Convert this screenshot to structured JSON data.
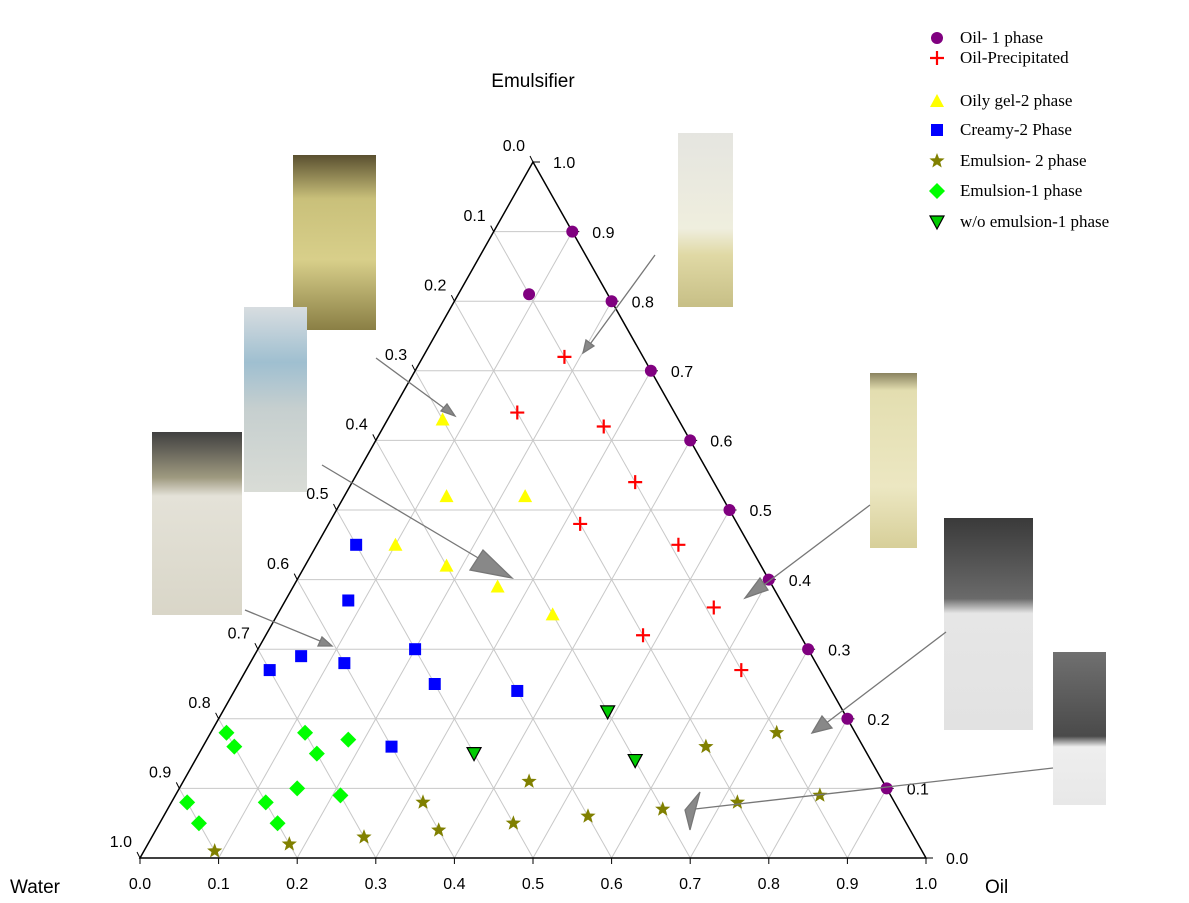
{
  "chart_data": {
    "type": "ternary",
    "axis_labels": {
      "top": "Emulsifier",
      "left": "Water",
      "right": "Oil"
    },
    "oil_ticks": [
      {
        "value": 0,
        "label": "0.0"
      },
      {
        "value": 0.1,
        "label": "0.1"
      },
      {
        "value": 0.2,
        "label": "0.2"
      },
      {
        "value": 0.3,
        "label": "0.3"
      },
      {
        "value": 0.4,
        "label": "0.4"
      },
      {
        "value": 0.5,
        "label": "0.5"
      },
      {
        "value": 0.6,
        "label": "0.6"
      },
      {
        "value": 0.7,
        "label": "0.7"
      },
      {
        "value": 0.8,
        "label": "0.8"
      },
      {
        "value": 0.9,
        "label": "0.9"
      },
      {
        "value": 1,
        "label": "1.0"
      }
    ],
    "water_ticks": [
      {
        "value": 0,
        "label": "0.0"
      },
      {
        "value": 0.1,
        "label": "0.1"
      },
      {
        "value": 0.2,
        "label": "0.2"
      },
      {
        "value": 0.3,
        "label": "0.3"
      },
      {
        "value": 0.4,
        "label": "0.4"
      },
      {
        "value": 0.5,
        "label": "0.5"
      },
      {
        "value": 0.6,
        "label": "0.6"
      },
      {
        "value": 0.7,
        "label": "0.7"
      },
      {
        "value": 0.8,
        "label": "0.8"
      },
      {
        "value": 0.9,
        "label": "0.9"
      },
      {
        "value": 1,
        "label": "1.0"
      }
    ],
    "emulsifier_ticks": [
      {
        "value": 0,
        "label": "0.0"
      },
      {
        "value": 0.1,
        "label": "0.1"
      },
      {
        "value": 0.2,
        "label": "0.2"
      },
      {
        "value": 0.3,
        "label": "0.3"
      },
      {
        "value": 0.4,
        "label": "0.4"
      },
      {
        "value": 0.5,
        "label": "0.5"
      },
      {
        "value": 0.6,
        "label": "0.6"
      },
      {
        "value": 0.7,
        "label": "0.7"
      },
      {
        "value": 0.8,
        "label": "0.8"
      },
      {
        "value": 0.9,
        "label": "0.9"
      },
      {
        "value": 1,
        "label": "1.0"
      }
    ],
    "grid": true,
    "legend": "top-right",
    "series": [
      {
        "name": "Oil- 1 phase",
        "marker": "circle",
        "color": "#800080",
        "oil": [
          0.1,
          0.09,
          0.2,
          0.3,
          0.4,
          0.5,
          0.6,
          0.7,
          0.8,
          0.9
        ],
        "emulsifier": [
          0.9,
          0.81,
          0.8,
          0.7,
          0.6,
          0.5,
          0.4,
          0.3,
          0.2,
          0.1
        ]
      },
      {
        "name": "Oil-Precipitated",
        "marker": "plus",
        "color": "#ff0000",
        "oil": [
          0.18,
          0.16,
          0.28,
          0.36,
          0.32,
          0.46,
          0.55,
          0.48,
          0.63
        ],
        "emulsifier": [
          0.72,
          0.64,
          0.62,
          0.54,
          0.48,
          0.45,
          0.36,
          0.32,
          0.27
        ]
      },
      {
        "name": "Oily gel-2 phase",
        "marker": "triangle",
        "color": "#ffff00",
        "oil": [
          0.07,
          0.13,
          0.23,
          0.1,
          0.18,
          0.26,
          0.35
        ],
        "emulsifier": [
          0.63,
          0.52,
          0.52,
          0.45,
          0.42,
          0.39,
          0.35
        ]
      },
      {
        "name": "Creamy-2 Phase",
        "marker": "square",
        "color": "#0000ff",
        "oil": [
          0.05,
          0.08,
          0.03,
          0.06,
          0.12,
          0.2,
          0.25,
          0.36,
          0.24
        ],
        "emulsifier": [
          0.45,
          0.37,
          0.27,
          0.29,
          0.28,
          0.3,
          0.25,
          0.24,
          0.16
        ]
      },
      {
        "name": "Emulsion- 2 phase",
        "marker": "star",
        "color": "#808000",
        "oil": [
          0.64,
          0.72,
          0.44,
          0.63,
          0.72,
          0.82,
          0.32,
          0.36,
          0.45,
          0.54,
          0.27,
          0.18,
          0.09
        ],
        "emulsifier": [
          0.16,
          0.18,
          0.11,
          0.07,
          0.08,
          0.09,
          0.08,
          0.04,
          0.05,
          0.06,
          0.03,
          0.02,
          0.01
        ]
      },
      {
        "name": "Emulsion-1 phase",
        "marker": "diamond",
        "color": "#00ff00",
        "oil": [
          0.02,
          0.04,
          0.12,
          0.15,
          0.18,
          0.02,
          0.05,
          0.12,
          0.15,
          0.15,
          0.21
        ],
        "emulsifier": [
          0.18,
          0.16,
          0.18,
          0.15,
          0.17,
          0.08,
          0.05,
          0.08,
          0.05,
          0.1,
          0.09
        ]
      },
      {
        "name": "w/o emulsion-1 phase",
        "marker": "down-triangle",
        "color": "#00cc00",
        "oil": [
          0.49,
          0.35,
          0.56
        ],
        "emulsifier": [
          0.21,
          0.15,
          0.14
        ]
      }
    ]
  }
}
